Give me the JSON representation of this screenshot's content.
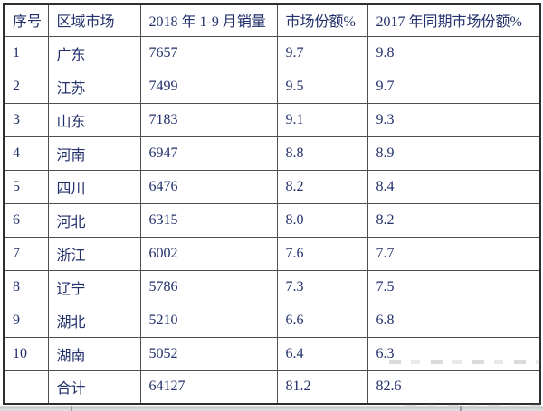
{
  "table": {
    "headers": [
      "序号",
      "区域市场",
      "2018 年 1-9 月销量",
      "市场份额%",
      "2017 年同期市场份额%"
    ],
    "rows": [
      {
        "cells": [
          "1",
          "广东",
          "7657",
          "9.7",
          "9.8"
        ]
      },
      {
        "cells": [
          "2",
          "江苏",
          "7499",
          "9.5",
          "9.7"
        ]
      },
      {
        "cells": [
          "3",
          "山东",
          "7183",
          "9.1",
          "9.3"
        ]
      },
      {
        "cells": [
          "4",
          "河南",
          "6947",
          "8.8",
          "8.9"
        ]
      },
      {
        "cells": [
          "5",
          "四川",
          "6476",
          "8.2",
          "8.4"
        ]
      },
      {
        "cells": [
          "6",
          "河北",
          "6315",
          "8.0",
          "8.2"
        ]
      },
      {
        "cells": [
          "7",
          "浙江",
          "6002",
          "7.6",
          "7.7"
        ]
      },
      {
        "cells": [
          "8",
          "辽宁",
          "5786",
          "7.3",
          "7.5"
        ]
      },
      {
        "cells": [
          "9",
          "湖北",
          "5210",
          "6.6",
          "6.8"
        ]
      },
      {
        "cells": [
          "10",
          "湖南",
          "5052",
          "6.4",
          "6.3"
        ]
      },
      {
        "cells": [
          "",
          "合计",
          "64127",
          "81.2",
          "82.6"
        ]
      }
    ]
  },
  "colors": {
    "text": "#22306b",
    "inner_border": "#4f4f4f",
    "outer_border": "#2e2e2e",
    "bottom_strip": "#c9c9ce",
    "watermark": "#8c8c94"
  },
  "chart_data": {
    "type": "table",
    "columns": [
      "序号",
      "区域市场",
      "2018 年 1-9 月销量",
      "市场份额%",
      "2017 年同期市场份额%"
    ],
    "rows": [
      [
        1,
        "广东",
        7657,
        9.7,
        9.8
      ],
      [
        2,
        "江苏",
        7499,
        9.5,
        9.7
      ],
      [
        3,
        "山东",
        7183,
        9.1,
        9.3
      ],
      [
        4,
        "河南",
        6947,
        8.8,
        8.9
      ],
      [
        5,
        "四川",
        6476,
        8.2,
        8.4
      ],
      [
        6,
        "河北",
        6315,
        8.0,
        8.2
      ],
      [
        7,
        "浙江",
        6002,
        7.6,
        7.7
      ],
      [
        8,
        "辽宁",
        5786,
        7.3,
        7.5
      ],
      [
        9,
        "湖北",
        5210,
        6.6,
        6.8
      ],
      [
        10,
        "湖南",
        5052,
        6.4,
        6.3
      ]
    ],
    "totals": {
      "label": "合计",
      "sales_2018_jan_sep": 64127,
      "share_2018_pct": 81.2,
      "share_2017_pct": 82.6
    }
  }
}
